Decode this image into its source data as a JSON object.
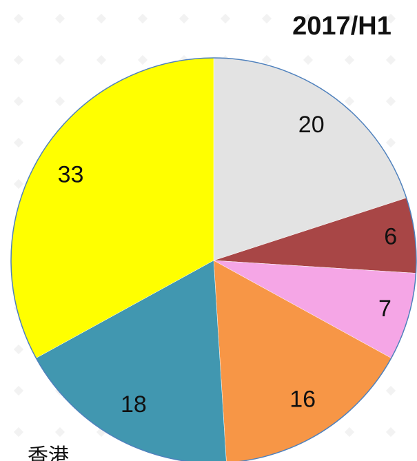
{
  "chart_data": {
    "type": "pie",
    "title": "2017/H1",
    "values": [
      20,
      6,
      7,
      16,
      18,
      33
    ],
    "colors": [
      "#e3e3e3",
      "#a84646",
      "#f5a6e6",
      "#f79646",
      "#4197b0",
      "#ffff00"
    ],
    "annotations": [
      "香港"
    ]
  }
}
